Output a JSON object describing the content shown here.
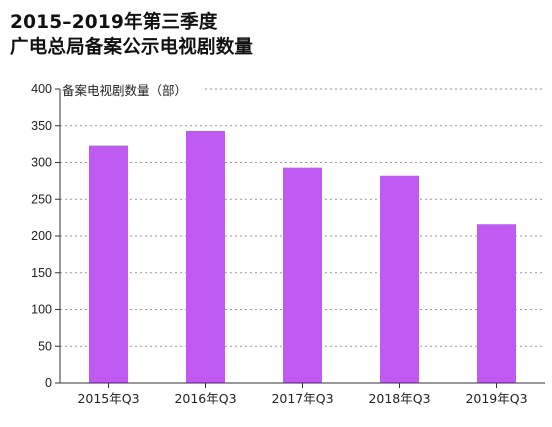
{
  "title_line1": "2015–2019年第三季度",
  "title_line2": "广电总局备案公示电视剧数量",
  "chart_data": {
    "type": "bar",
    "categories": [
      "2015年Q3",
      "2016年Q3",
      "2017年Q3",
      "2018年Q3",
      "2019年Q3"
    ],
    "values": [
      323,
      343,
      293,
      282,
      216
    ],
    "ylabel": "备案电视剧数量（部）",
    "ylim": [
      0,
      400
    ],
    "yticks": [
      0,
      50,
      100,
      150,
      200,
      250,
      300,
      350,
      400
    ],
    "bar_color": "#bf5af2",
    "grid": "dashed horizontal"
  }
}
